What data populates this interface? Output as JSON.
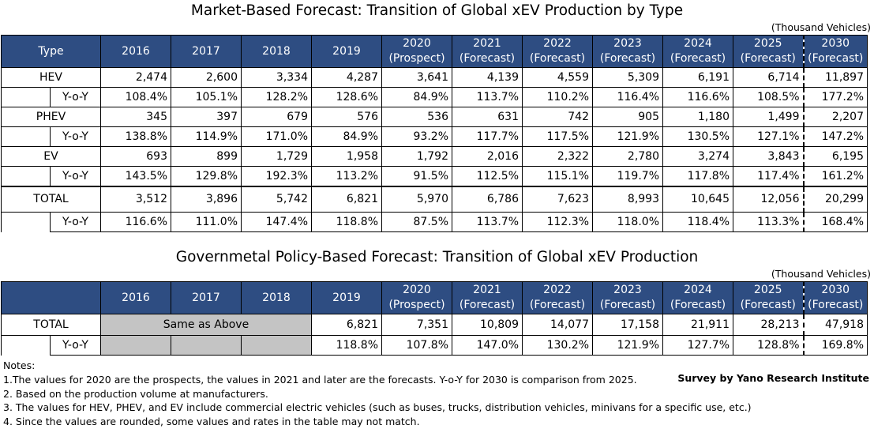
{
  "table1": {
    "title": "Market-Based Forecast: Transition of Global xEV Production by Type",
    "unit": "(Thousand Vehicles)",
    "headers": [
      {
        "top": "Type",
        "bottom": ""
      },
      {
        "top": "2016",
        "bottom": ""
      },
      {
        "top": "2017",
        "bottom": ""
      },
      {
        "top": "2018",
        "bottom": ""
      },
      {
        "top": "2019",
        "bottom": ""
      },
      {
        "top": "2020",
        "bottom": "(Prospect)"
      },
      {
        "top": "2021",
        "bottom": "(Forecast)"
      },
      {
        "top": "2022",
        "bottom": "(Forecast)"
      },
      {
        "top": "2023",
        "bottom": "(Forecast)"
      },
      {
        "top": "2024",
        "bottom": "(Forecast)"
      },
      {
        "top": "2025",
        "bottom": "(Forecast)"
      },
      {
        "top": "2030",
        "bottom": "(Forecast)"
      }
    ],
    "rows": [
      {
        "type": "HEV",
        "values": [
          "2,474",
          "2,600",
          "3,334",
          "4,287",
          "3,641",
          "4,139",
          "4,559",
          "5,309",
          "6,191",
          "6,714",
          "11,897"
        ],
        "yoy_label": "Y-o-Y",
        "yoy": [
          "108.4%",
          "105.1%",
          "128.2%",
          "128.6%",
          "84.9%",
          "113.7%",
          "110.2%",
          "116.4%",
          "116.6%",
          "108.5%",
          "177.2%"
        ]
      },
      {
        "type": "PHEV",
        "values": [
          "345",
          "397",
          "679",
          "576",
          "536",
          "631",
          "742",
          "905",
          "1,180",
          "1,499",
          "2,207"
        ],
        "yoy_label": "Y-o-Y",
        "yoy": [
          "138.8%",
          "114.9%",
          "171.0%",
          "84.9%",
          "93.2%",
          "117.7%",
          "117.5%",
          "121.9%",
          "130.5%",
          "127.1%",
          "147.2%"
        ]
      },
      {
        "type": "EV",
        "values": [
          "693",
          "899",
          "1,729",
          "1,958",
          "1,792",
          "2,016",
          "2,322",
          "2,780",
          "3,274",
          "3,843",
          "6,195"
        ],
        "yoy_label": "Y-o-Y",
        "yoy": [
          "143.5%",
          "129.8%",
          "192.3%",
          "113.2%",
          "91.5%",
          "112.5%",
          "115.1%",
          "119.7%",
          "117.8%",
          "117.4%",
          "161.2%"
        ]
      },
      {
        "type": "TOTAL",
        "values": [
          "3,512",
          "3,896",
          "5,742",
          "6,821",
          "5,970",
          "6,786",
          "7,623",
          "8,993",
          "10,645",
          "12,056",
          "20,299"
        ],
        "yoy_label": "Y-o-Y",
        "yoy": [
          "116.6%",
          "111.0%",
          "147.4%",
          "118.8%",
          "87.5%",
          "113.7%",
          "112.3%",
          "118.0%",
          "118.4%",
          "113.3%",
          "168.4%"
        ]
      }
    ]
  },
  "table2": {
    "title": "Governmetal Policy-Based Forecast: Transition of Global xEV Production",
    "unit": "(Thousand Vehicles)",
    "headers": [
      {
        "top": "",
        "bottom": ""
      },
      {
        "top": "2016",
        "bottom": ""
      },
      {
        "top": "2017",
        "bottom": ""
      },
      {
        "top": "2018",
        "bottom": ""
      },
      {
        "top": "2019",
        "bottom": ""
      },
      {
        "top": "2020",
        "bottom": "(Prospect)"
      },
      {
        "top": "2021",
        "bottom": "(Forecast)"
      },
      {
        "top": "2022",
        "bottom": "(Forecast)"
      },
      {
        "top": "2023",
        "bottom": "(Forecast)"
      },
      {
        "top": "2024",
        "bottom": "(Forecast)"
      },
      {
        "top": "2025",
        "bottom": "(Forecast)"
      },
      {
        "top": "2030",
        "bottom": "(Forecast)"
      }
    ],
    "total_label": "TOTAL",
    "same_as_above": "Same as Above",
    "total_values": [
      "6,821",
      "7,351",
      "10,809",
      "14,077",
      "17,158",
      "21,911",
      "28,213",
      "47,918"
    ],
    "yoy_label": "Y-o-Y",
    "yoy_values": [
      "118.8%",
      "107.8%",
      "147.0%",
      "130.2%",
      "121.9%",
      "127.7%",
      "128.8%",
      "169.8%"
    ]
  },
  "notes": {
    "heading": "Notes:",
    "lines": [
      "1.The values for 2020 are the prospects, the values in 2021 and later are the forecasts. Y-o-Y for 2030 is comparison from 2025.",
      "2. Based on the production volume at manufacturers.",
      "3. The values for HEV, PHEV,  and EV include commercial electric vehicles (such as buses, trucks, distribution vehicles, minivans for a specific use, etc.)",
      "4. Since the values are rounded, some values and rates in the table may not match."
    ]
  },
  "credit": "Survey by Yano Research Institute",
  "colors": {
    "header_bg": "#2E4D82",
    "grey_cell": "#c4c4c4"
  }
}
